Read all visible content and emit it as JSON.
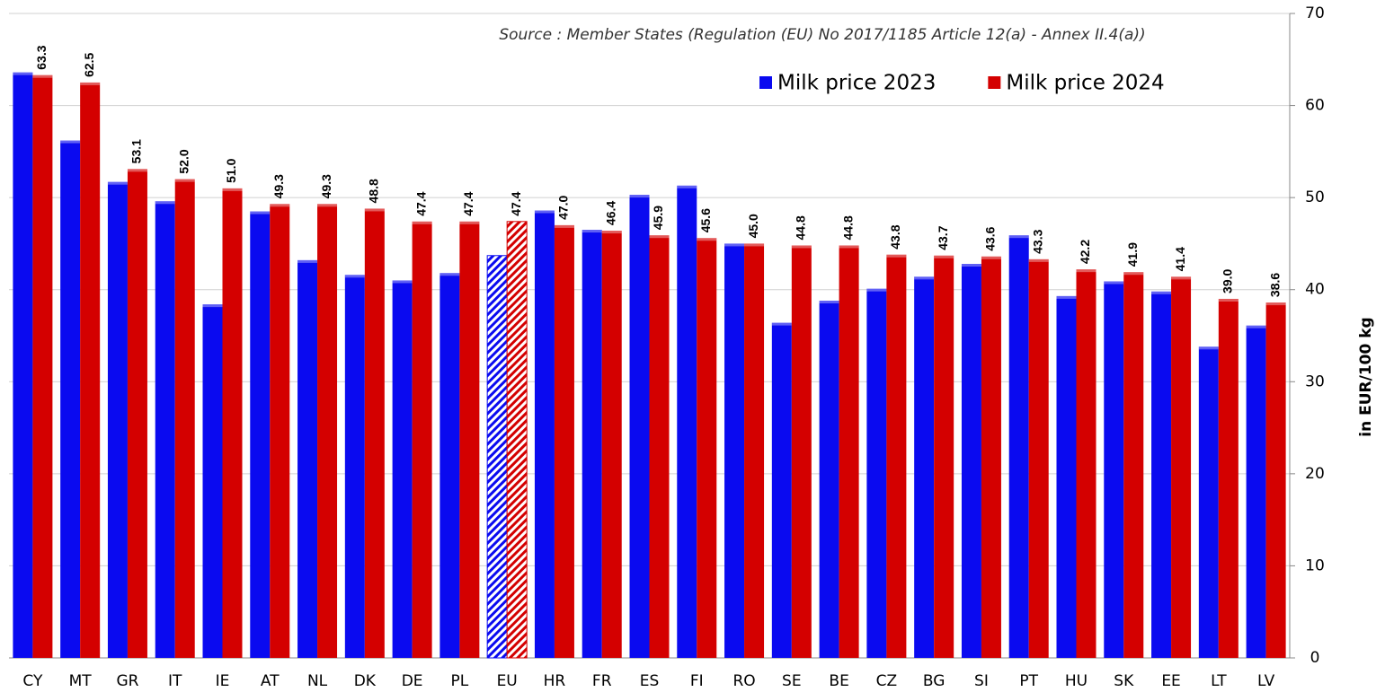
{
  "chart_data": {
    "type": "bar",
    "source": "Source : Member States (Regulation (EU) No 2017/1185 Article 12(a) - Annex II.4(a))",
    "y_axis_label": "in EUR/100 kg",
    "categories": [
      "CY",
      "MT",
      "GR",
      "IT",
      "IE",
      "AT",
      "NL",
      "DK",
      "DE",
      "PL",
      "EU",
      "HR",
      "FR",
      "ES",
      "FI",
      "RO",
      "SE",
      "BE",
      "CZ",
      "BG",
      "SI",
      "PT",
      "HU",
      "SK",
      "EE",
      "LT",
      "LV"
    ],
    "series": [
      {
        "name": "Milk price 2023",
        "color": "#0a0af0",
        "values": [
          63.6,
          56.2,
          51.7,
          49.6,
          38.4,
          48.5,
          43.2,
          41.6,
          41.0,
          41.8,
          43.7,
          48.6,
          46.5,
          50.3,
          51.3,
          45.0,
          36.4,
          38.8,
          40.1,
          41.4,
          42.8,
          45.9,
          39.3,
          40.9,
          39.8,
          33.8,
          36.1
        ]
      },
      {
        "name": "Milk price 2024",
        "color": "#d40000",
        "values": [
          63.3,
          62.5,
          53.1,
          52.0,
          51.0,
          49.3,
          49.3,
          48.8,
          47.4,
          47.4,
          47.4,
          47.0,
          46.4,
          45.9,
          45.6,
          45.0,
          44.8,
          44.8,
          43.8,
          43.7,
          43.6,
          43.3,
          42.2,
          41.9,
          41.4,
          39.0,
          38.6
        ],
        "value_labels": [
          "63.3",
          "62.5",
          "53.1",
          "52.0",
          "51.0",
          "49.3",
          "49.3",
          "48.8",
          "47.4",
          "47.4",
          "47.4",
          "47.0",
          "46.4",
          "45.9",
          "45.6",
          "45.0",
          "44.8",
          "44.8",
          "43.8",
          "43.7",
          "43.6",
          "43.3",
          "42.2",
          "41.9",
          "41.4",
          "39.0",
          "38.6"
        ]
      }
    ],
    "hatched": [
      "EU"
    ],
    "ylim": [
      0,
      70
    ],
    "yticks": [
      0,
      10,
      20,
      30,
      40,
      50,
      60,
      70
    ],
    "grid": true,
    "y_axis_side": "right",
    "legend": "top-right"
  }
}
